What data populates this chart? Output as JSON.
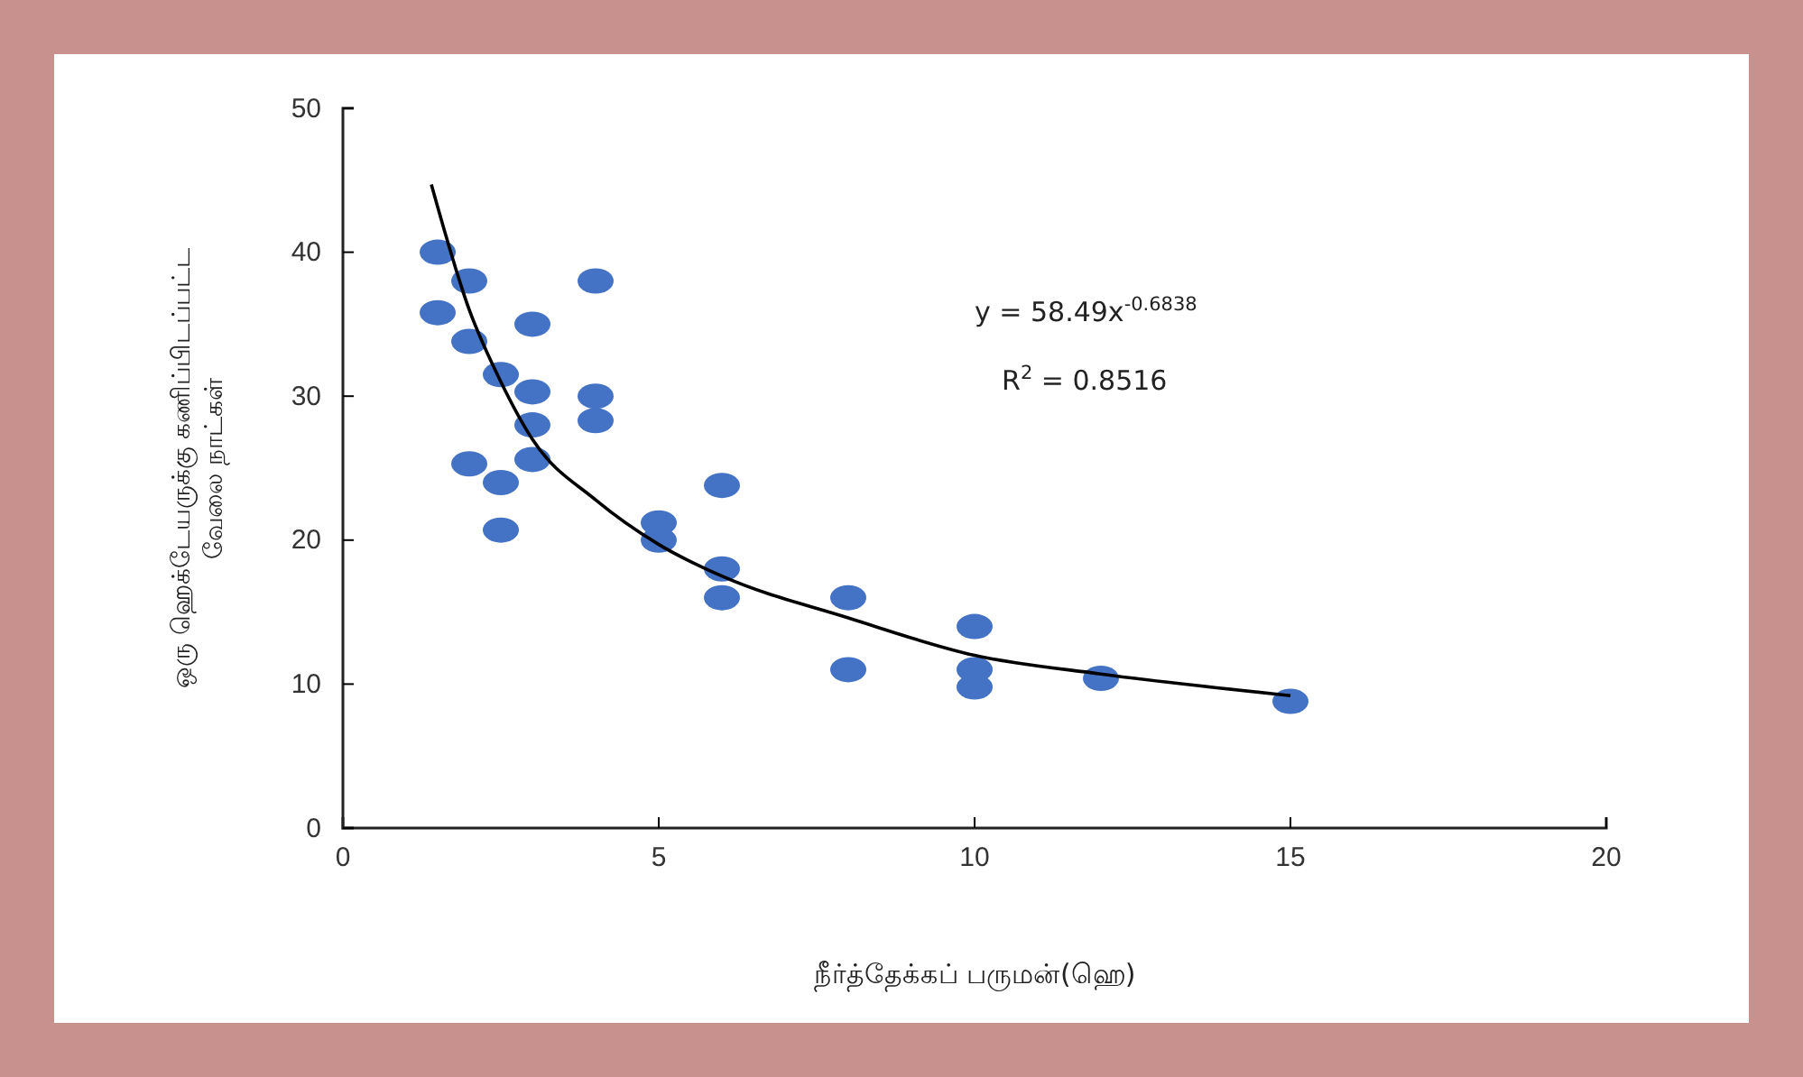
{
  "chart_data": {
    "type": "scatter",
    "xlabel": "நீர்த்தேக்கப் பருமன்(ஹெ)",
    "ylabel": "ஒரு ஹெக்டேயருக்கு கணிப்பிடப்பட்ட வேலை நாட்கள்",
    "xlim": [
      0,
      20
    ],
    "ylim": [
      0,
      50
    ],
    "xticks": [
      0,
      5,
      10,
      15,
      20
    ],
    "yticks": [
      0,
      10,
      20,
      30,
      40,
      50
    ],
    "grid": false,
    "marker": "circle",
    "series": [
      {
        "color": "#4472c4",
        "x": [
          1.5,
          1.5,
          2,
          2,
          2,
          2.5,
          2.5,
          2.5,
          3,
          3,
          3,
          3,
          4,
          4,
          4,
          5,
          5,
          6,
          6,
          6,
          8,
          8,
          10,
          10,
          10,
          12,
          15
        ],
        "values": [
          40,
          35.8,
          38,
          33.8,
          25.3,
          31.5,
          24,
          20.7,
          35,
          30.3,
          28,
          25.6,
          38,
          30,
          28.3,
          21.2,
          20,
          23.8,
          18,
          16,
          16,
          11,
          14,
          11,
          9.8,
          10.4,
          8.8
        ]
      },
      {
        "type": "line",
        "color": "#000000",
        "line_style": "solid",
        "marker": "none",
        "x": [
          1.4,
          2,
          2.5,
          3,
          4,
          5,
          6,
          8,
          10,
          12,
          15
        ],
        "values": [
          44.7,
          36,
          31,
          27,
          22.8,
          19.7,
          17.5,
          14.6,
          12,
          10.7,
          9.2
        ]
      }
    ],
    "annotations": [
      "y = 58.49x$^{-0.6838}$",
      "R$^{2}$ = 0.8516"
    ]
  }
}
